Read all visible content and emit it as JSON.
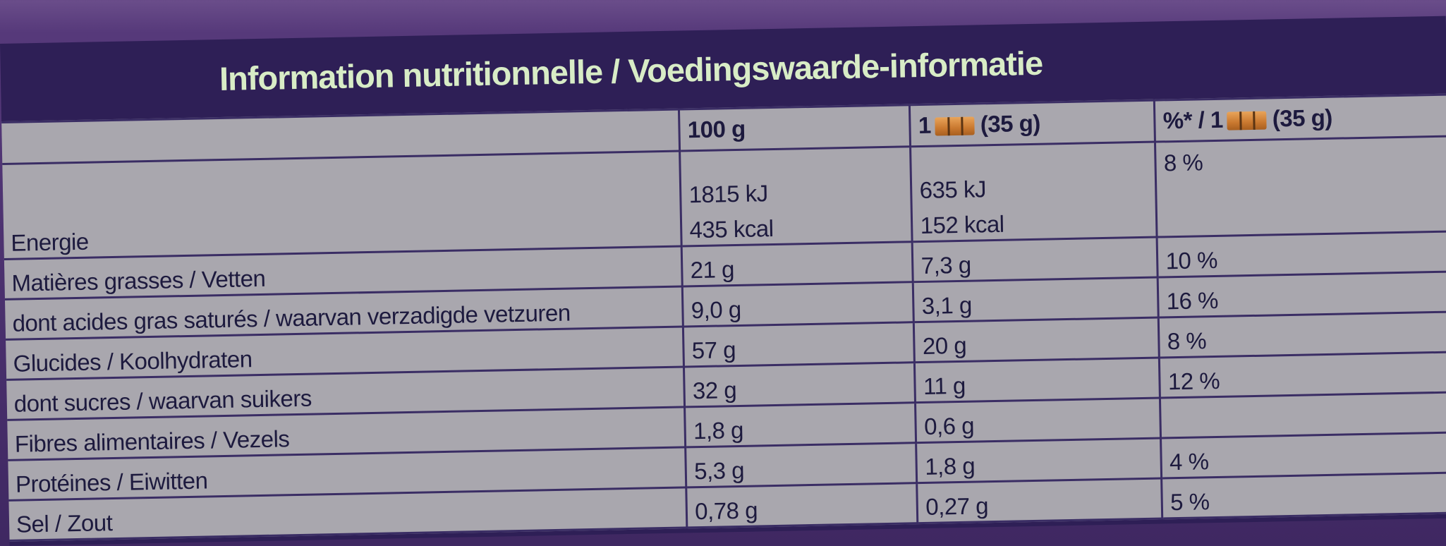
{
  "title": "Information nutritionnelle / Voedingswaarde-informatie",
  "header": {
    "per100": "100 g",
    "portion_prefix": "1",
    "portion_suffix": "(35 g)",
    "ri_prefix": "%* / 1",
    "ri_suffix": "(35 g)",
    "portion_icon": "chocolate-pieces-icon"
  },
  "energy": {
    "label": "Energie",
    "per100_kj": "1815 kJ",
    "per100_kcal": "435 kcal",
    "portion_kj": "635 kJ",
    "portion_kcal": "152 kcal",
    "ri": "8 %"
  },
  "rows": [
    {
      "label": "Matières grasses / Vetten",
      "per100": "21 g",
      "portion": "7,3 g",
      "ri": "10 %"
    },
    {
      "label": "dont acides gras saturés / waarvan verzadigde vetzuren",
      "per100": "9,0 g",
      "portion": "3,1 g",
      "ri": "16 %"
    },
    {
      "label": "Glucides / Koolhydraten",
      "per100": "57 g",
      "portion": "20 g",
      "ri": "8 %"
    },
    {
      "label": "dont sucres / waarvan suikers",
      "per100": "32 g",
      "portion": "11 g",
      "ri": "12 %"
    },
    {
      "label": "Fibres alimentaires / Vezels",
      "per100": "1,8 g",
      "portion": "0,6 g",
      "ri": ""
    },
    {
      "label": "Protéines / Eiwitten",
      "per100": "5,3 g",
      "portion": "1,8 g",
      "ri": "4 %"
    },
    {
      "label": "Sel / Zout",
      "per100": "0,78 g",
      "portion": "0,27 g",
      "ri": "5 %"
    }
  ]
}
